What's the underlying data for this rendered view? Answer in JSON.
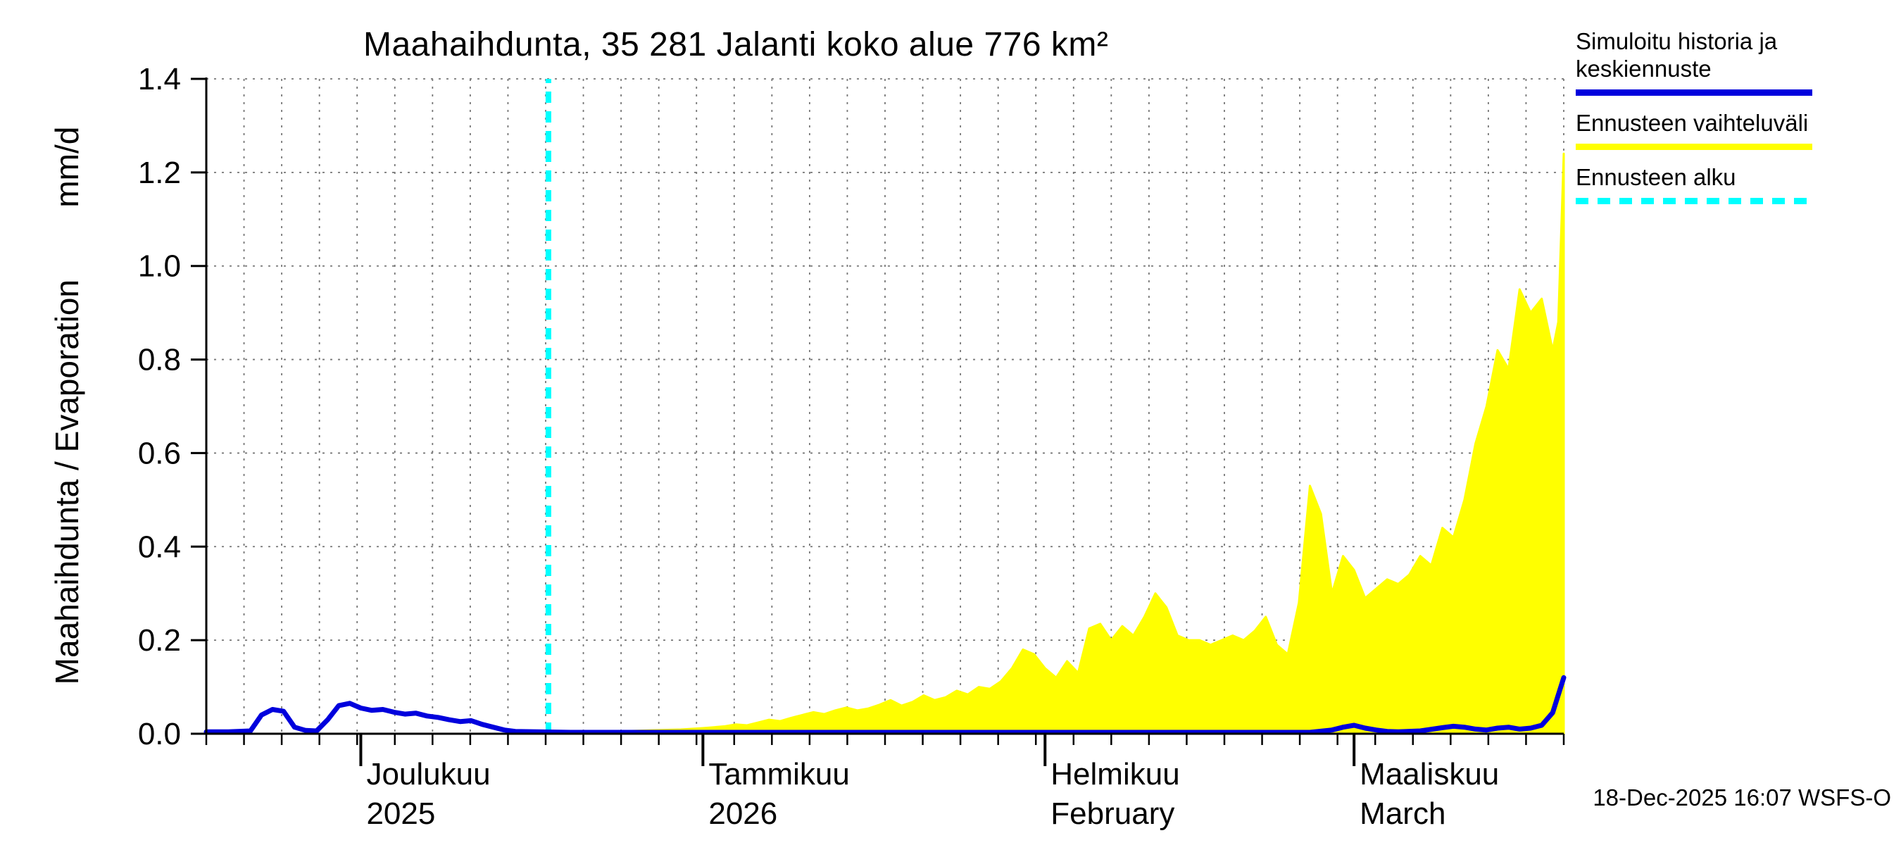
{
  "title": "Maahaihdunta, 35 281 Jalanti koko alue 776 km²",
  "y_axis_label": "Maahaihdunta / Evaporation        mm/d",
  "footer": "18-Dec-2025 16:07 WSFS-O",
  "legend": {
    "position": "top-right-outside",
    "items": [
      {
        "label": "Simuloitu historia ja keskiennuste",
        "color": "#0000dd",
        "style": "solid"
      },
      {
        "label": "Ennusteen vaihteluväli",
        "color": "#ffff00",
        "style": "solid"
      },
      {
        "label": "Ennusteen alku",
        "color": "#00ffff",
        "style": "dashed"
      }
    ]
  },
  "chart_data": {
    "type": "area",
    "title": "Maahaihdunta, 35 281 Jalanti koko alue 776 km²",
    "ylabel": "Maahaihdunta / Evaporation mm/d",
    "ylim": [
      0,
      1.4
    ],
    "yticks": [
      0.0,
      0.2,
      0.4,
      0.6,
      0.8,
      1.0,
      1.2,
      1.4
    ],
    "x_axis": {
      "unit": "days",
      "xlim": [
        0,
        123
      ],
      "months": [
        {
          "label": "Joulukuu",
          "sublabel": "2025",
          "day": 14
        },
        {
          "label": "Tammikuu",
          "sublabel": "2026",
          "day": 45
        },
        {
          "label": "Helmikuu",
          "sublabel": "February",
          "day": 76
        },
        {
          "label": "Maaliskuu",
          "sublabel": "March",
          "day": 104
        }
      ]
    },
    "grid": {
      "on": true,
      "v_divisions": 36
    },
    "forecast_start": {
      "label": "Ennusteen alku",
      "day": 31,
      "color": "#00ffff"
    },
    "series": [
      {
        "name": "Ennusteen vaihteluväli",
        "type": "area",
        "color": "#ffff00",
        "baseline": 0,
        "points": [
          [
            31,
            0.004
          ],
          [
            34,
            0.004
          ],
          [
            37,
            0.005
          ],
          [
            40,
            0.007
          ],
          [
            43,
            0.009
          ],
          [
            45,
            0.012
          ],
          [
            46,
            0.014
          ],
          [
            47,
            0.016
          ],
          [
            48,
            0.02
          ],
          [
            49,
            0.018
          ],
          [
            50,
            0.024
          ],
          [
            51,
            0.03
          ],
          [
            52,
            0.027
          ],
          [
            53,
            0.034
          ],
          [
            54,
            0.04
          ],
          [
            55,
            0.046
          ],
          [
            56,
            0.042
          ],
          [
            57,
            0.05
          ],
          [
            58,
            0.056
          ],
          [
            59,
            0.05
          ],
          [
            60,
            0.054
          ],
          [
            61,
            0.062
          ],
          [
            62,
            0.072
          ],
          [
            63,
            0.06
          ],
          [
            64,
            0.068
          ],
          [
            65,
            0.082
          ],
          [
            66,
            0.072
          ],
          [
            67,
            0.078
          ],
          [
            68,
            0.092
          ],
          [
            69,
            0.084
          ],
          [
            70,
            0.1
          ],
          [
            71,
            0.096
          ],
          [
            72,
            0.112
          ],
          [
            73,
            0.14
          ],
          [
            74,
            0.18
          ],
          [
            75,
            0.17
          ],
          [
            76,
            0.14
          ],
          [
            77,
            0.12
          ],
          [
            78,
            0.155
          ],
          [
            79,
            0.13
          ],
          [
            80,
            0.225
          ],
          [
            81,
            0.235
          ],
          [
            82,
            0.2
          ],
          [
            83,
            0.23
          ],
          [
            84,
            0.21
          ],
          [
            85,
            0.25
          ],
          [
            86,
            0.3
          ],
          [
            87,
            0.27
          ],
          [
            88,
            0.21
          ],
          [
            89,
            0.2
          ],
          [
            90,
            0.2
          ],
          [
            91,
            0.19
          ],
          [
            92,
            0.2
          ],
          [
            93,
            0.21
          ],
          [
            94,
            0.2
          ],
          [
            95,
            0.22
          ],
          [
            96,
            0.25
          ],
          [
            97,
            0.19
          ],
          [
            98,
            0.17
          ],
          [
            99,
            0.28
          ],
          [
            100,
            0.53
          ],
          [
            101,
            0.47
          ],
          [
            102,
            0.3
          ],
          [
            103,
            0.38
          ],
          [
            104,
            0.35
          ],
          [
            105,
            0.29
          ],
          [
            106,
            0.31
          ],
          [
            107,
            0.33
          ],
          [
            108,
            0.32
          ],
          [
            109,
            0.34
          ],
          [
            110,
            0.38
          ],
          [
            111,
            0.36
          ],
          [
            112,
            0.44
          ],
          [
            113,
            0.42
          ],
          [
            114,
            0.5
          ],
          [
            115,
            0.62
          ],
          [
            116,
            0.7
          ],
          [
            117,
            0.82
          ],
          [
            118,
            0.78
          ],
          [
            119,
            0.95
          ],
          [
            120,
            0.9
          ],
          [
            121,
            0.93
          ],
          [
            122,
            0.82
          ],
          [
            122.5,
            0.88
          ],
          [
            123,
            1.24
          ]
        ]
      },
      {
        "name": "Simuloitu historia ja keskiennuste",
        "type": "line",
        "color": "#0000dd",
        "points": [
          [
            0,
            0.004
          ],
          [
            2,
            0.004
          ],
          [
            4,
            0.006
          ],
          [
            5,
            0.04
          ],
          [
            6,
            0.052
          ],
          [
            7,
            0.048
          ],
          [
            8,
            0.014
          ],
          [
            9,
            0.007
          ],
          [
            10,
            0.006
          ],
          [
            11,
            0.03
          ],
          [
            12,
            0.06
          ],
          [
            13,
            0.065
          ],
          [
            14,
            0.055
          ],
          [
            15,
            0.05
          ],
          [
            16,
            0.052
          ],
          [
            17,
            0.046
          ],
          [
            18,
            0.042
          ],
          [
            19,
            0.044
          ],
          [
            20,
            0.038
          ],
          [
            21,
            0.035
          ],
          [
            22,
            0.03
          ],
          [
            23,
            0.026
          ],
          [
            24,
            0.028
          ],
          [
            25,
            0.02
          ],
          [
            26,
            0.014
          ],
          [
            27,
            0.008
          ],
          [
            28,
            0.005
          ],
          [
            30,
            0.004
          ],
          [
            33,
            0.003
          ],
          [
            38,
            0.003
          ],
          [
            45,
            0.003
          ],
          [
            55,
            0.003
          ],
          [
            65,
            0.003
          ],
          [
            75,
            0.003
          ],
          [
            85,
            0.003
          ],
          [
            95,
            0.003
          ],
          [
            100,
            0.003
          ],
          [
            102,
            0.008
          ],
          [
            103,
            0.014
          ],
          [
            104,
            0.018
          ],
          [
            105,
            0.012
          ],
          [
            106,
            0.008
          ],
          [
            107,
            0.005
          ],
          [
            108,
            0.004
          ],
          [
            110,
            0.006
          ],
          [
            112,
            0.013
          ],
          [
            113,
            0.016
          ],
          [
            114,
            0.014
          ],
          [
            115,
            0.01
          ],
          [
            116,
            0.008
          ],
          [
            117,
            0.012
          ],
          [
            118,
            0.014
          ],
          [
            119,
            0.01
          ],
          [
            120,
            0.012
          ],
          [
            121,
            0.018
          ],
          [
            122,
            0.045
          ],
          [
            123,
            0.12
          ]
        ]
      }
    ]
  }
}
